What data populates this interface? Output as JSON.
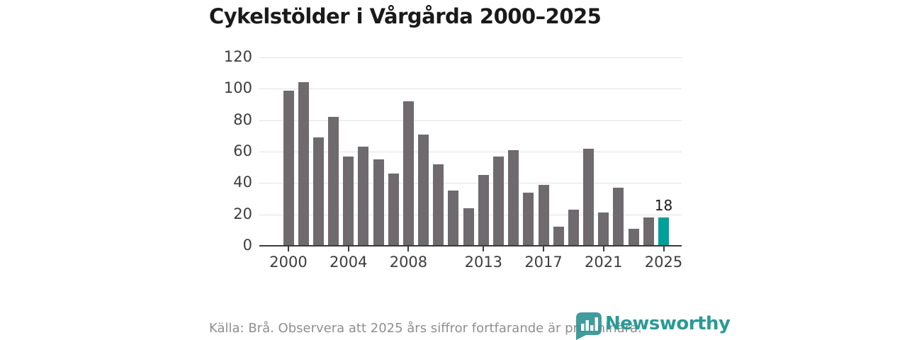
{
  "title": "Cykelstölder i Vårgårda 2000–2025",
  "chart_data": {
    "type": "bar",
    "title": "Cykelstölder i Vårgårda 2000–2025",
    "x": [
      2000,
      2001,
      2002,
      2003,
      2004,
      2005,
      2006,
      2007,
      2008,
      2009,
      2010,
      2011,
      2012,
      2013,
      2014,
      2015,
      2016,
      2017,
      2018,
      2019,
      2020,
      2021,
      2022,
      2023,
      2024,
      2025
    ],
    "values": [
      99,
      104,
      69,
      82,
      57,
      63,
      55,
      46,
      92,
      71,
      52,
      35,
      24,
      45,
      57,
      61,
      34,
      39,
      12,
      23,
      62,
      21,
      37,
      11,
      18,
      18
    ],
    "xlabel": "",
    "ylabel": "",
    "ylim": [
      0,
      120
    ],
    "yticks": [
      0,
      20,
      40,
      60,
      80,
      100,
      120
    ],
    "xticks": [
      2000,
      2004,
      2008,
      2013,
      2017,
      2021,
      2025
    ],
    "grid": true,
    "legend_position": "none",
    "bar_color": "#6e6a6e",
    "highlight_x": 2025,
    "highlight_color": "#00a09a",
    "highlight_value_label": "18"
  },
  "footer": {
    "source_note": "Källa: Brå. Observera att 2025 års siffror fortfarande är preliminära."
  },
  "branding": {
    "logo_icon": "newsworthy-badge-bar-chart-icon",
    "logo_text": "Newsworthy",
    "logo_color": "#2a9a96",
    "badge_color": "#2d9191"
  }
}
